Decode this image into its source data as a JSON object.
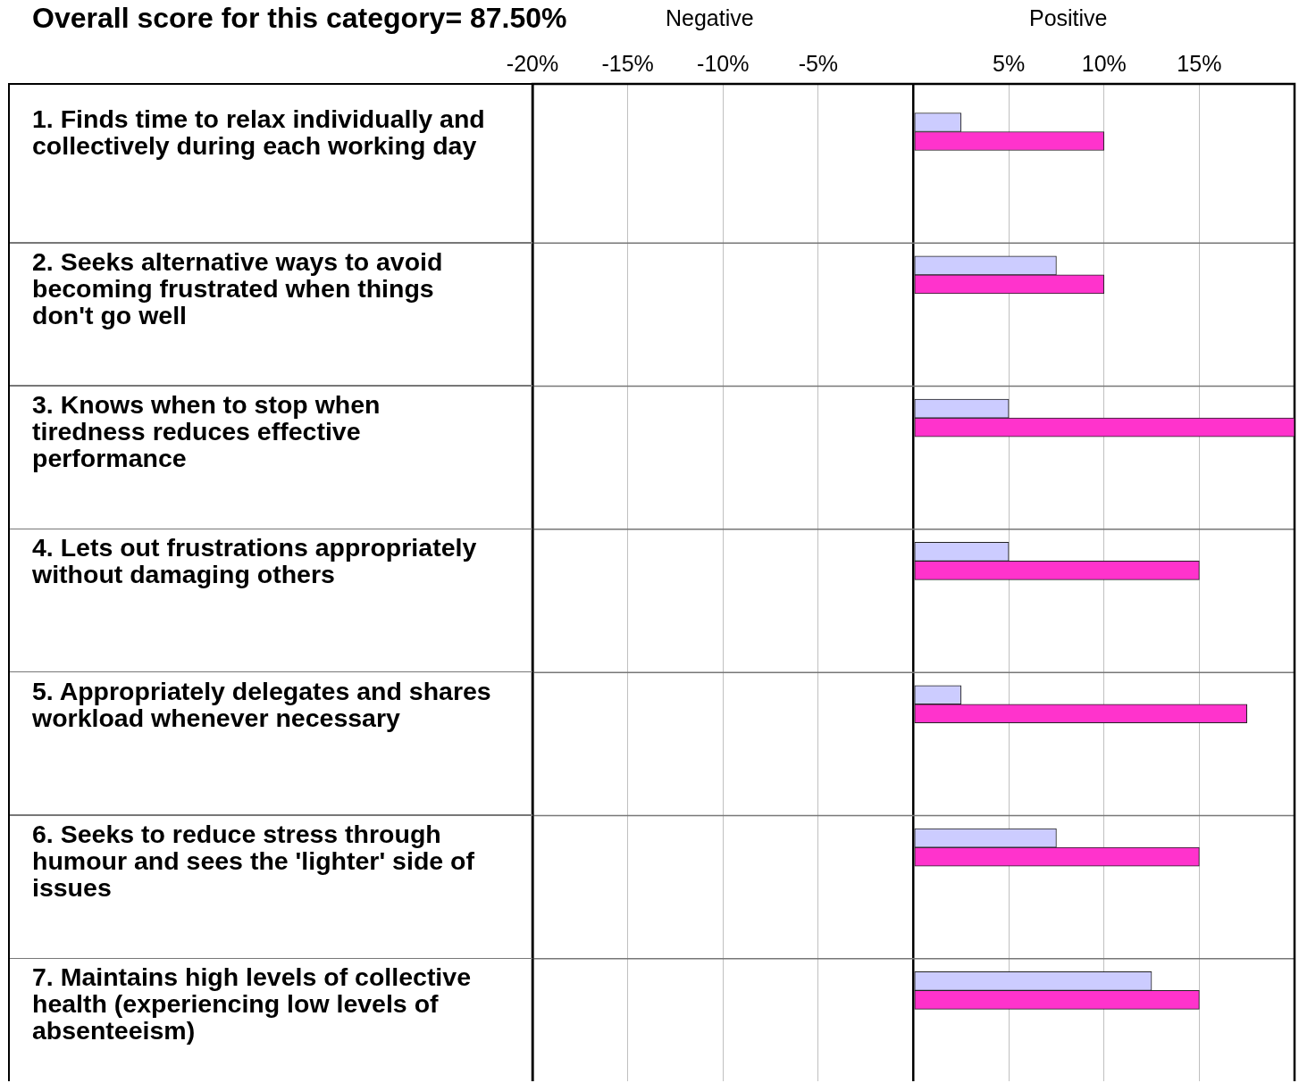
{
  "chart_data": {
    "type": "bar",
    "orientation": "horizontal",
    "title": "Overall score for this category= 87.50%",
    "annotations": [
      "Negative",
      "Positive"
    ],
    "categories": [
      "1. Finds time to relax individually and collectively during each working day",
      "2. Seeks alternative ways to avoid becoming frustrated when things don't go well",
      "3. Knows when to stop when tiredness reduces effective performance",
      "4. Lets out frustrations appropriately without damaging others",
      "5. Appropriately delegates and shares workload whenever necessary",
      "6. Seeks to reduce stress through humour and sees the 'lighter' side of issues",
      "7. Maintains high levels of collective health (experiencing low levels of absenteeism)"
    ],
    "series": [
      {
        "color": "#ccccff",
        "values": [
          2.5,
          7.5,
          5,
          5,
          2.5,
          7.5,
          12.5
        ]
      },
      {
        "color": "#ff33cc",
        "values": [
          10,
          10,
          20,
          15,
          17.5,
          15,
          15
        ]
      }
    ],
    "xlim": [
      -20,
      20
    ],
    "xticks": [
      {
        "value": -20,
        "label": "-20%"
      },
      {
        "value": -15,
        "label": "-15%"
      },
      {
        "value": -10,
        "label": "-10%"
      },
      {
        "value": -5,
        "label": "-5%"
      },
      {
        "value": 0,
        "label": null
      },
      {
        "value": 5,
        "label": "5%"
      },
      {
        "value": 10,
        "label": "10%"
      },
      {
        "value": 15,
        "label": "15%"
      }
    ],
    "grid": "x"
  }
}
